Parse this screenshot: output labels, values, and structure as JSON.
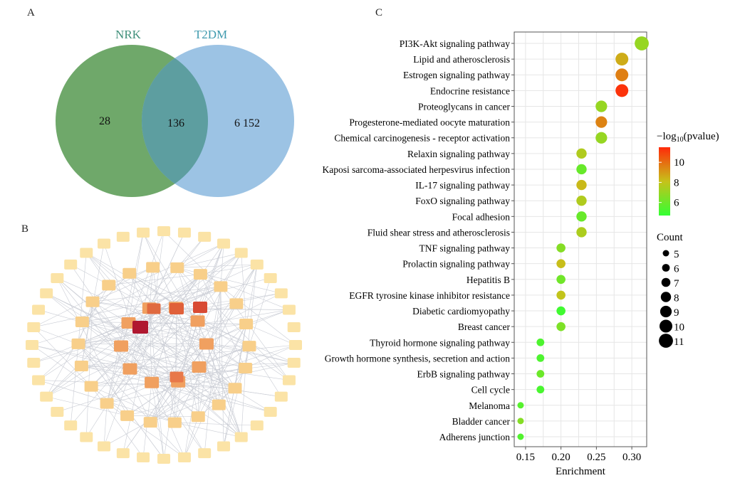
{
  "panels": {
    "a": "A",
    "b": "B",
    "c": "C"
  },
  "venn": {
    "sets": [
      {
        "name": "NRK",
        "color": "#6fa86a",
        "label_color": "#3f8f7a"
      },
      {
        "name": "T2DM",
        "color": "#9cc3e4",
        "label_color": "#3f9aae"
      }
    ],
    "only_nrk": "28",
    "intersection": "136",
    "only_t2dm": "6 152"
  },
  "chart_data": {
    "type": "scatter",
    "xlabel": "Enrichment",
    "ylabel": "",
    "xlim": [
      0.134,
      0.321
    ],
    "xticks": [
      "0.15",
      "0.20",
      "0.25",
      "0.30"
    ],
    "xtick_values": [
      0.15,
      0.2,
      0.25,
      0.3
    ],
    "grid": true,
    "color_legend": {
      "title_prefix": "−log",
      "title_sub": "10",
      "title_suffix": "(pvalue)",
      "range": [
        4.7,
        11.5
      ],
      "ticks": [
        "10",
        "8",
        "6"
      ],
      "tick_values": [
        10,
        8,
        6
      ],
      "low_color": "#33ff33",
      "mid_color": "#c6c21a",
      "high_color": "#ff2a0a"
    },
    "size_legend": {
      "title": "Count",
      "values": [
        "5",
        "6",
        "7",
        "8",
        "9",
        "10",
        "11"
      ]
    },
    "legend_position": "right",
    "terms": [
      {
        "name": "PI3K-Akt signaling pathway",
        "enrichment": 0.314,
        "count": 11,
        "neglog10p": 7.0
      },
      {
        "name": "Lipid and atherosclerosis",
        "enrichment": 0.286,
        "count": 10,
        "neglog10p": 8.6
      },
      {
        "name": "Estrogen signaling pathway",
        "enrichment": 0.286,
        "count": 10,
        "neglog10p": 9.6
      },
      {
        "name": "Endocrine resistance",
        "enrichment": 0.286,
        "count": 10,
        "neglog10p": 11.3
      },
      {
        "name": "Proteoglycans in cancer",
        "enrichment": 0.257,
        "count": 9,
        "neglog10p": 7.0
      },
      {
        "name": "Progesterone-mediated oocyte maturation",
        "enrichment": 0.257,
        "count": 9,
        "neglog10p": 9.5
      },
      {
        "name": "Chemical carcinogenesis - receptor activation",
        "enrichment": 0.257,
        "count": 9,
        "neglog10p": 7.0
      },
      {
        "name": "Relaxin signaling pathway",
        "enrichment": 0.229,
        "count": 8,
        "neglog10p": 7.6
      },
      {
        "name": "Kaposi sarcoma-associated herpesvirus infection",
        "enrichment": 0.229,
        "count": 8,
        "neglog10p": 5.9
      },
      {
        "name": "IL-17 signaling pathway",
        "enrichment": 0.229,
        "count": 8,
        "neglog10p": 8.3
      },
      {
        "name": "FoxO signaling pathway",
        "enrichment": 0.229,
        "count": 8,
        "neglog10p": 7.6
      },
      {
        "name": "Focal adhesion",
        "enrichment": 0.229,
        "count": 8,
        "neglog10p": 5.9
      },
      {
        "name": "Fluid shear stress and atherosclerosis",
        "enrichment": 0.229,
        "count": 8,
        "neglog10p": 7.5
      },
      {
        "name": "TNF signaling pathway",
        "enrichment": 0.2,
        "count": 7,
        "neglog10p": 6.6
      },
      {
        "name": "Prolactin signaling pathway",
        "enrichment": 0.2,
        "count": 7,
        "neglog10p": 8.2
      },
      {
        "name": "Hepatitis B",
        "enrichment": 0.2,
        "count": 7,
        "neglog10p": 6.1
      },
      {
        "name": "EGFR tyrosine kinase inhibitor resistance",
        "enrichment": 0.2,
        "count": 7,
        "neglog10p": 8.0
      },
      {
        "name": "Diabetic cardiomyopathy",
        "enrichment": 0.2,
        "count": 7,
        "neglog10p": 5.0
      },
      {
        "name": "Breast cancer",
        "enrichment": 0.2,
        "count": 7,
        "neglog10p": 6.4
      },
      {
        "name": "Thyroid hormone signaling pathway",
        "enrichment": 0.171,
        "count": 6,
        "neglog10p": 5.3
      },
      {
        "name": "Growth hormone synthesis, secretion and action",
        "enrichment": 0.171,
        "count": 6,
        "neglog10p": 5.3
      },
      {
        "name": "ErbB signaling pathway",
        "enrichment": 0.171,
        "count": 6,
        "neglog10p": 6.0
      },
      {
        "name": "Cell cycle",
        "enrichment": 0.171,
        "count": 6,
        "neglog10p": 5.2
      },
      {
        "name": "Melanoma",
        "enrichment": 0.143,
        "count": 5,
        "neglog10p": 5.5
      },
      {
        "name": "Bladder cancer",
        "enrichment": 0.143,
        "count": 5,
        "neglog10p": 6.6
      },
      {
        "name": "Adherens junction",
        "enrichment": 0.143,
        "count": 5,
        "neglog10p": 5.4
      }
    ]
  }
}
